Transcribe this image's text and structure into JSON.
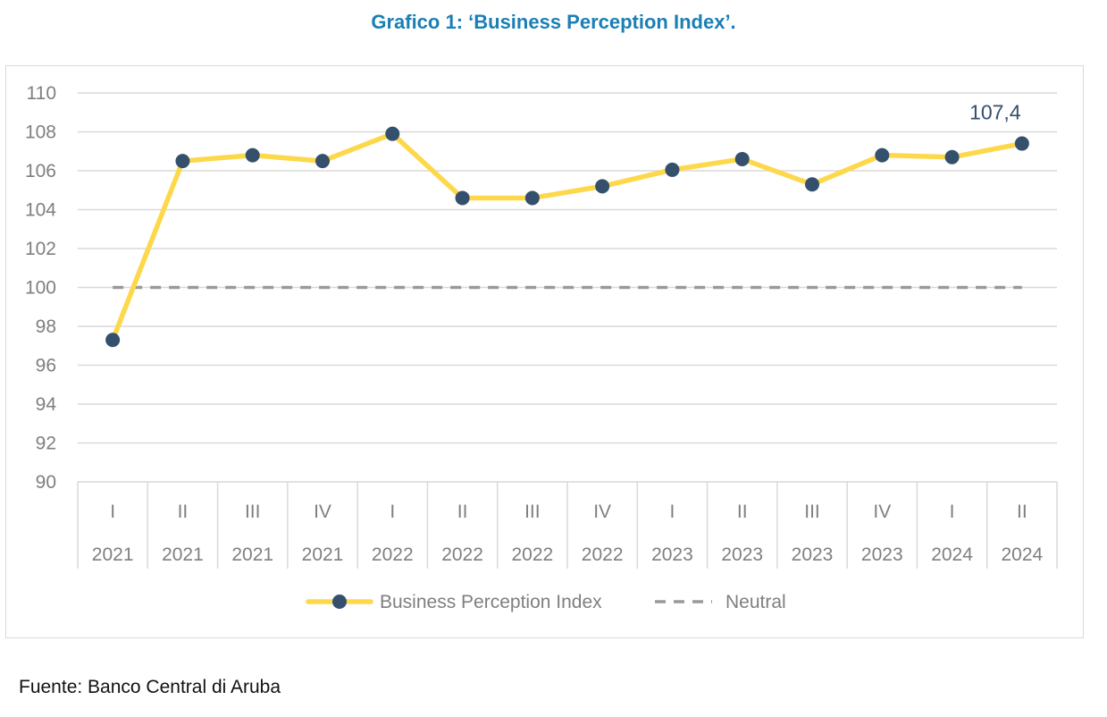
{
  "title": "Grafico 1: ‘Business Perception Index’.",
  "source": "Fuente: Banco Central di Aruba",
  "colors": {
    "title": "#1a7fb5",
    "series": "#fdd84a",
    "marker": "#34506d",
    "neutral": "#999999",
    "grid": "#d9d9d9",
    "axis_text": "#7f7f7f",
    "label": "#34506d"
  },
  "chart_data": {
    "type": "line",
    "title": "Grafico 1: ‘Business Perception Index’.",
    "categories": [
      {
        "quarter": "I",
        "year": "2021"
      },
      {
        "quarter": "II",
        "year": "2021"
      },
      {
        "quarter": "III",
        "year": "2021"
      },
      {
        "quarter": "IV",
        "year": "2021"
      },
      {
        "quarter": "I",
        "year": "2022"
      },
      {
        "quarter": "II",
        "year": "2022"
      },
      {
        "quarter": "III",
        "year": "2022"
      },
      {
        "quarter": "IV",
        "year": "2022"
      },
      {
        "quarter": "I",
        "year": "2023"
      },
      {
        "quarter": "II",
        "year": "2023"
      },
      {
        "quarter": "III",
        "year": "2023"
      },
      {
        "quarter": "IV",
        "year": "2023"
      },
      {
        "quarter": "I",
        "year": "2024"
      },
      {
        "quarter": "II",
        "year": "2024"
      }
    ],
    "series": [
      {
        "name": "Business Perception Index",
        "values": [
          97.3,
          106.5,
          106.8,
          106.5,
          107.9,
          104.6,
          104.6,
          105.2,
          106.05,
          106.6,
          105.3,
          106.8,
          106.7,
          107.4
        ]
      },
      {
        "name": "Neutral",
        "style": "dashed",
        "values": [
          100,
          100,
          100,
          100,
          100,
          100,
          100,
          100,
          100,
          100,
          100,
          100,
          100,
          100
        ]
      }
    ],
    "data_labels": [
      {
        "index": 13,
        "text": "107,4"
      }
    ],
    "yticks": [
      90,
      92,
      94,
      96,
      98,
      100,
      102,
      104,
      106,
      108,
      110
    ],
    "ylim": [
      90,
      110
    ],
    "grid": true,
    "legend": {
      "position": "bottom",
      "entries": [
        "Business Perception Index",
        "Neutral"
      ]
    },
    "xlabel": "",
    "ylabel": ""
  }
}
